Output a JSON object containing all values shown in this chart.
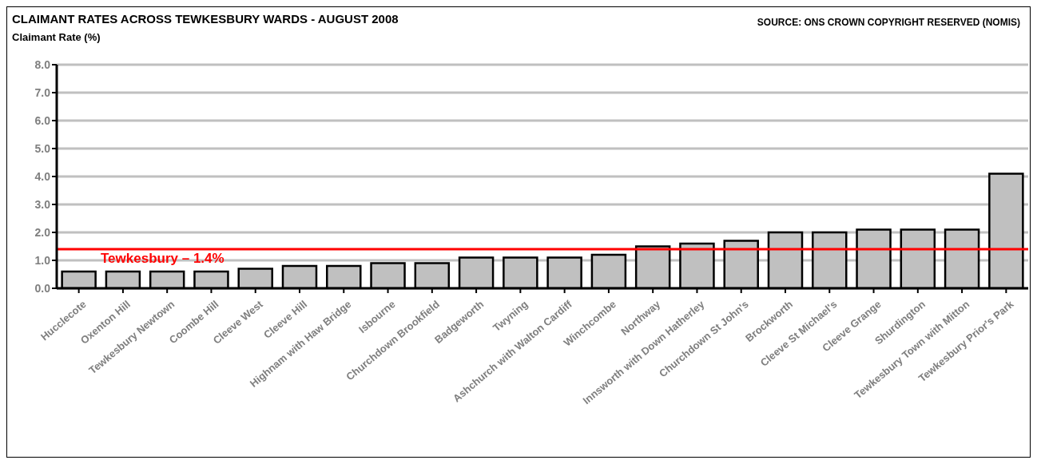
{
  "chart_data": {
    "type": "bar",
    "title": "CLAIMANT RATES ACROSS TEWKESBURY WARDS - AUGUST 2008",
    "ylabel": "Claimant Rate (%)",
    "annotations": [
      "SOURCE: ONS CROWN COPYRIGHT RESERVED (NOMIS)"
    ],
    "categories": [
      "Hucclecote",
      "Oxenton Hill",
      "Tewkesbury Newtown",
      "Coombe Hill",
      "Cleeve West",
      "Cleeve Hill",
      "Highnam with Haw Bridge",
      "Isbourne",
      "Churchdown Brookfield",
      "Badgeworth",
      "Twyning",
      "Ashchurch with Walton Cardiff",
      "Winchcombe",
      "Northway",
      "Innsworth with  Down Hatherley",
      "Churchdown St John's",
      "Brockworth",
      "Cleeve St Michael's",
      "Cleeve Grange",
      "Shurdington",
      "Tewkesbury Town with Mitton",
      "Tewkesbury Prior's Park"
    ],
    "values": [
      0.6,
      0.6,
      0.6,
      0.6,
      0.7,
      0.8,
      0.8,
      0.9,
      0.9,
      1.1,
      1.1,
      1.1,
      1.2,
      1.5,
      1.6,
      1.7,
      2.0,
      2.0,
      2.1,
      2.1,
      2.1,
      4.1
    ],
    "color": "#c0c0c0",
    "ylim": [
      0,
      8
    ],
    "yticks": [
      {
        "value": 0,
        "label": "0.0"
      },
      {
        "value": 1,
        "label": "1.0"
      },
      {
        "value": 2,
        "label": "2.0"
      },
      {
        "value": 3,
        "label": "3.0"
      },
      {
        "value": 4,
        "label": "4.0"
      },
      {
        "value": 5,
        "label": "5.0"
      },
      {
        "value": 6,
        "label": "6.0"
      },
      {
        "value": 7,
        "label": "7.0"
      },
      {
        "value": 8,
        "label": "8.0"
      }
    ],
    "grid": "y",
    "ref_lines": [
      {
        "axis": "y",
        "value": 1.4,
        "label": "Tewkesbury – 1.4%",
        "color": "#ff0000"
      }
    ]
  }
}
